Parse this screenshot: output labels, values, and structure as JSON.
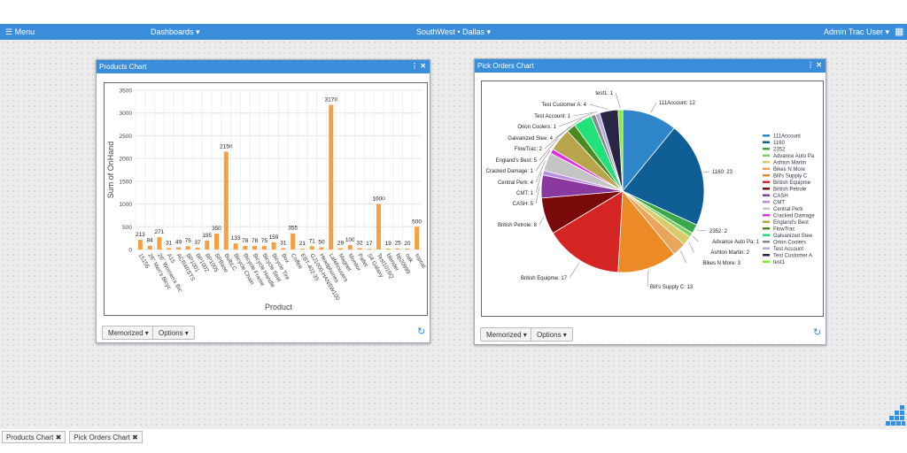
{
  "topbar": {
    "menu": "☰ Menu",
    "dashboards": "Dashboards ▾",
    "location": "SouthWest • Dallas ▾",
    "user": "Admin Trac User ▾"
  },
  "products_panel": {
    "title": "Products Chart",
    "memorized": "Memorized ▾",
    "options": "Options ▾"
  },
  "pick_panel": {
    "title": "Pick Orders Chart",
    "memorized": "Memorized ▾",
    "options": "Options ▾"
  },
  "footer_tabs": [
    {
      "label": "Products Chart ✖"
    },
    {
      "label": "Pick Orders Chart ✖"
    }
  ],
  "chart_data": [
    {
      "type": "bar",
      "xlabel": "Product",
      "ylabel": "Sum of OnHand",
      "ylim": [
        0,
        3500
      ],
      "yticks": [
        0,
        500,
        1000,
        1500,
        2000,
        2500,
        3000,
        3500
      ],
      "grid": true,
      "color": "#f4a040",
      "categories": [
        "15156",
        "26\" Men's Bicyc",
        "26\" Women's Bic",
        "A15",
        "ACR4RSTS",
        "BP1001",
        "BP1002",
        "BP1005",
        "BPBase",
        "BulbLC",
        "Bicycle Chain",
        "Bicycle Frame",
        "Bicycle Handle",
        "Bicycle Seat",
        "Bicycle Tire",
        "Box",
        "Coffee",
        "EBT-402-35",
        "GJ1000-HANSW100",
        "Headphones",
        "Lafehousers",
        "Magnet",
        "Monitor",
        "Pallet",
        "S4 Galaxy",
        "Test1016Q",
        "blender",
        "bp20999",
        "oak",
        "topcat"
      ],
      "values": [
        213,
        84,
        271,
        31,
        49,
        75,
        37,
        195,
        350,
        2150,
        133,
        78,
        78,
        75,
        159,
        31,
        355,
        21,
        71,
        50,
        3178,
        29,
        100,
        32,
        17,
        1000,
        19,
        25,
        20,
        500
      ]
    },
    {
      "type": "pie",
      "legend": "right",
      "categories": [
        "111Account",
        "1160",
        "2352",
        "Advance Auto Pa",
        "Ashton Martin",
        "Bikes N More",
        "Bill's Supply C",
        "British Equipme",
        "British Petrole",
        "CASH",
        "CMT",
        "Central Perk",
        "Cracked Damage",
        "England's Best",
        "FlowTrac",
        "Galvanized Stee",
        "Orion Coolers",
        "Test Account",
        "Test Customer A",
        "test1"
      ],
      "values": [
        12,
        23,
        2,
        1,
        2,
        3,
        13,
        17,
        8,
        5,
        1,
        4,
        1,
        5,
        2,
        4,
        1,
        1,
        4,
        1
      ],
      "colors": [
        "#2e86c8",
        "#0f5e96",
        "#3aa84a",
        "#7fcf6a",
        "#d8cc6a",
        "#e9a55a",
        "#ec8a25",
        "#d42424",
        "#7a0a0a",
        "#8a3a9e",
        "#b98fe0",
        "#c4c4c4",
        "#e22ee2",
        "#b8a44a",
        "#4a8a1e",
        "#22e07a",
        "#888888",
        "#b3aee0",
        "#2a2445",
        "#80ee30"
      ]
    }
  ]
}
